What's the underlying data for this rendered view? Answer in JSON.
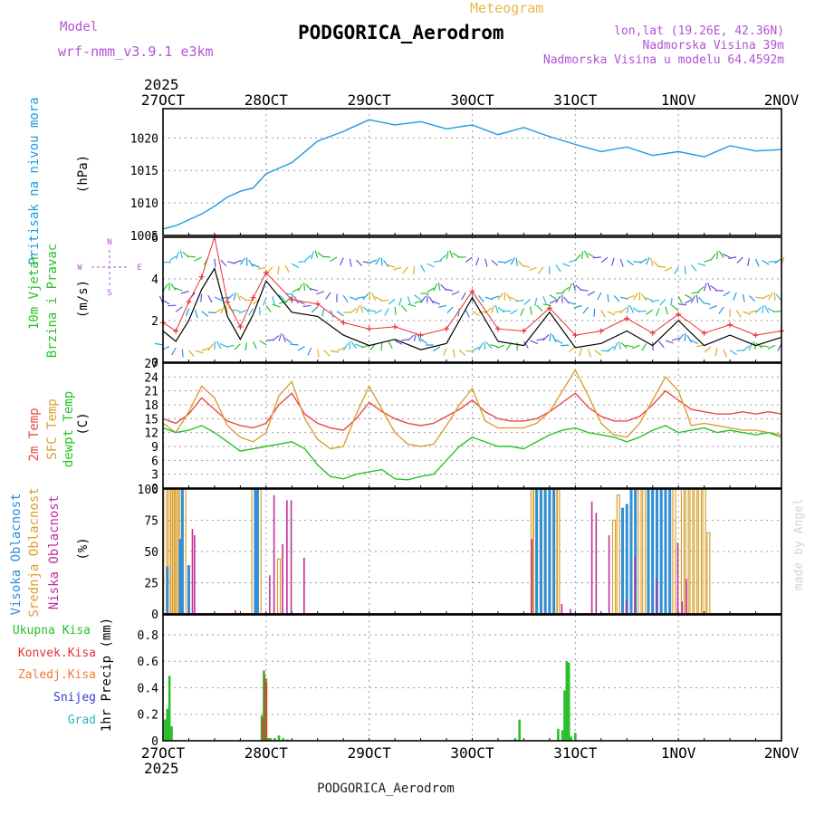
{
  "header": {
    "model_label": "Model",
    "model_name": "wrf-nmm_v3.9.1  e3km",
    "meteogram_label": "Meteogram",
    "station_title": "PODGORICA_Aerodrom",
    "lonlat": "lon,lat (19.26E, 42.36N)",
    "elevation": "Nadmorska Visina 39m",
    "model_elevation": "Nadmorska Visina u modelu 64.4592m",
    "year_top": "2025",
    "year_bottom": "2025",
    "footer_title": "PODGORICA_Aerodrom",
    "credit": "made by Angel"
  },
  "colors": {
    "pressure": "#1e9ae0",
    "wind_speed": "#000000",
    "gust": "#e83030",
    "temp2m": "#e84a4a",
    "sfc_temp": "#d9a032",
    "dewpoint": "#27c227",
    "cloud_high": "#2f8fd8",
    "cloud_mid": "#d9a032",
    "cloud_low": "#c0309a",
    "precip_total": "#2bbf2b",
    "precip_convective": "#e83030",
    "title_purple": "#b352d6",
    "meteogram_orange": "#e6b84a",
    "credit": "#cfd8cf",
    "grid": "#9a9a9a"
  },
  "chart_data": [
    {
      "type": "line",
      "panel": "pressure",
      "ylabel_lines": [
        "Pritisak na nivou mora",
        "(hPa)"
      ],
      "ylim": [
        1005,
        1024.5
      ],
      "yticks": [
        1005,
        1010,
        1015,
        1020
      ],
      "x_hours": [
        0,
        3,
        6,
        9,
        12,
        15,
        18,
        21,
        24,
        30,
        36,
        42,
        48,
        54,
        60,
        66,
        72,
        78,
        84,
        90,
        96,
        102,
        108,
        114,
        120,
        126,
        132,
        138,
        144
      ],
      "series": [
        {
          "name": "Pritisak na nivou mora",
          "values": [
            1006.0,
            1006.5,
            1007.4,
            1008.3,
            1009.5,
            1010.9,
            1011.8,
            1012.3,
            1014.5,
            1016.2,
            1019.5,
            1021.0,
            1022.8,
            1022.0,
            1022.5,
            1021.4,
            1022.0,
            1020.5,
            1021.6,
            1020.2,
            1019.0,
            1017.9,
            1018.6,
            1017.3,
            1017.9,
            1017.1,
            1018.8,
            1018.0,
            1018.2
          ]
        }
      ]
    },
    {
      "type": "line",
      "panel": "wind",
      "ylabel_lines": [
        "10m Vjetar",
        "Brzina i Pravac",
        "(m/s)"
      ],
      "compass": [
        "N",
        "E",
        "S",
        "W"
      ],
      "ylim": [
        0,
        6
      ],
      "yticks": [
        0,
        2,
        4,
        6
      ],
      "x_hours": [
        0,
        3,
        6,
        9,
        12,
        15,
        18,
        21,
        24,
        30,
        36,
        42,
        48,
        54,
        60,
        66,
        72,
        78,
        84,
        90,
        96,
        102,
        108,
        114,
        120,
        126,
        132,
        138,
        144
      ],
      "series": [
        {
          "name": "Brzina vjetra",
          "values": [
            1.5,
            1.0,
            2.0,
            3.5,
            4.5,
            2.2,
            1.1,
            2.3,
            3.9,
            2.4,
            2.2,
            1.3,
            0.8,
            1.1,
            0.6,
            0.9,
            3.1,
            1.0,
            0.8,
            2.4,
            0.7,
            0.9,
            1.5,
            0.8,
            2.0,
            0.8,
            1.3,
            0.8,
            1.2
          ]
        },
        {
          "name": "Udari vjetra",
          "values": [
            1.9,
            1.5,
            2.9,
            4.1,
            6.0,
            2.9,
            1.7,
            3.1,
            4.3,
            3.0,
            2.8,
            1.9,
            1.6,
            1.7,
            1.3,
            1.6,
            3.4,
            1.6,
            1.5,
            2.6,
            1.3,
            1.5,
            2.1,
            1.4,
            2.3,
            1.4,
            1.8,
            1.3,
            1.5
          ]
        }
      ]
    },
    {
      "type": "line",
      "panel": "temperature",
      "ylabel_lines": [
        "2m Temp",
        "SFC Temp",
        "dewpt Temp",
        "(C)"
      ],
      "ylim": [
        0,
        27
      ],
      "yticks": [
        0,
        3,
        6,
        9,
        12,
        15,
        18,
        21,
        24,
        27
      ],
      "x_hours": [
        0,
        3,
        6,
        9,
        12,
        15,
        18,
        21,
        24,
        27,
        30,
        33,
        36,
        39,
        42,
        45,
        48,
        51,
        54,
        57,
        60,
        63,
        66,
        69,
        72,
        75,
        78,
        81,
        84,
        87,
        90,
        93,
        96,
        99,
        102,
        105,
        108,
        111,
        114,
        117,
        120,
        123,
        126,
        129,
        132,
        135,
        138,
        141,
        144
      ],
      "series": [
        {
          "name": "2m Temp",
          "values": [
            15.0,
            14.0,
            16.0,
            19.5,
            17.0,
            14.5,
            13.5,
            13.0,
            14.0,
            18.0,
            20.5,
            16.0,
            14.0,
            13.0,
            12.5,
            15.0,
            18.5,
            16.5,
            15.0,
            14.0,
            13.5,
            14.0,
            15.5,
            17.0,
            19.0,
            16.5,
            15.0,
            14.5,
            14.5,
            15.0,
            16.5,
            18.5,
            20.5,
            17.5,
            15.5,
            14.5,
            14.5,
            15.5,
            18.0,
            21.0,
            19.0,
            17.0,
            16.5,
            16.0,
            16.0,
            16.5,
            16.0,
            16.5,
            16.0
          ]
        },
        {
          "name": "SFC Temp",
          "values": [
            14.0,
            12.0,
            16.5,
            22.0,
            19.5,
            13.5,
            11.0,
            10.0,
            12.0,
            20.0,
            23.0,
            15.0,
            10.5,
            8.5,
            9.0,
            16.0,
            22.0,
            17.0,
            12.0,
            9.5,
            9.0,
            9.5,
            13.5,
            18.0,
            21.5,
            14.5,
            13.0,
            13.0,
            13.0,
            14.0,
            16.5,
            21.0,
            25.5,
            20.0,
            14.0,
            11.5,
            11.0,
            14.0,
            19.0,
            24.0,
            21.0,
            13.5,
            14.0,
            13.5,
            13.0,
            12.5,
            12.5,
            12.0,
            11.5
          ]
        },
        {
          "name": "Dewpoint",
          "values": [
            13.0,
            12.0,
            12.5,
            13.5,
            12.0,
            10.0,
            8.0,
            8.5,
            9.0,
            9.5,
            10.0,
            8.5,
            5.0,
            2.5,
            2.0,
            3.0,
            3.5,
            4.0,
            2.0,
            1.8,
            2.5,
            3.0,
            6.0,
            9.0,
            11.0,
            10.0,
            9.0,
            9.0,
            8.5,
            10.0,
            11.5,
            12.5,
            13.0,
            12.0,
            11.5,
            11.0,
            10.0,
            11.0,
            12.5,
            13.5,
            12.0,
            12.5,
            13.0,
            12.0,
            12.5,
            12.0,
            11.5,
            12.0,
            11.0
          ]
        }
      ]
    },
    {
      "type": "bar",
      "panel": "cloud_cover",
      "ylabel_lines": [
        "Visoka Oblacnost",
        "Srednja Oblacnost",
        "Niska Oblacnost",
        "(%)"
      ],
      "ylim": [
        0,
        100
      ],
      "yticks": [
        0,
        25,
        50,
        75,
        100
      ],
      "series": [
        {
          "name": "Visoka Oblacnost",
          "x": [
            1,
            4,
            4.5,
            6,
            21.5,
            22,
            87,
            88,
            89,
            90,
            91,
            107,
            108,
            109,
            110,
            113,
            114,
            115,
            116,
            117,
            118
          ],
          "values": [
            38,
            60,
            100,
            39,
            100,
            100,
            100,
            100,
            100,
            100,
            100,
            85,
            88,
            100,
            100,
            100,
            100,
            100,
            100,
            100,
            100
          ]
        },
        {
          "name": "Srednja Oblacnost",
          "x": [
            0.5,
            1.5,
            2,
            2.5,
            3,
            3.5,
            4,
            5,
            21,
            22.5,
            27,
            86,
            86.5,
            87.5,
            88.5,
            89.5,
            90.5,
            91.5,
            92,
            105,
            106,
            109.5,
            111,
            112,
            113.5,
            115.5,
            117.5,
            119,
            121,
            122,
            123,
            124,
            125,
            126,
            127
          ],
          "values": [
            100,
            100,
            100,
            100,
            100,
            100,
            100,
            100,
            100,
            100,
            44,
            100,
            100,
            100,
            100,
            100,
            100,
            100,
            100,
            75,
            95,
            100,
            100,
            100,
            100,
            100,
            100,
            100,
            100,
            100,
            100,
            100,
            100,
            100,
            65
          ]
        },
        {
          "name": "Niska Oblacnost",
          "x": [
            7,
            7.5,
            17,
            25,
            26,
            28,
            29,
            30,
            33,
            86,
            93,
            95,
            100,
            101,
            104,
            108,
            110,
            115,
            120,
            121,
            122
          ],
          "values": [
            68,
            63,
            3,
            31,
            95,
            56,
            91,
            91,
            45,
            60,
            8,
            4,
            90,
            81,
            63,
            11,
            46,
            28,
            57,
            10,
            28
          ]
        }
      ]
    },
    {
      "type": "bar",
      "panel": "precipitation",
      "ylabel_lines": [
        "1hr Precip (mm)"
      ],
      "legend": [
        "Ukupna Kisa",
        "Konvek.Kisa",
        "Zaledj.Kisa",
        "Snijeg",
        "Grad"
      ],
      "ylim": [
        0,
        0.95
      ],
      "yticks": [
        0,
        0.2,
        0.4,
        0.6,
        0.8
      ],
      "series": [
        {
          "name": "Ukupna Kisa",
          "x": [
            0.5,
            1,
            1.5,
            2,
            23,
            23.5,
            24,
            24.5,
            25,
            26,
            27,
            28,
            29,
            82,
            83,
            92,
            93,
            93.5,
            94,
            94.5,
            95,
            96
          ],
          "values": [
            0.16,
            0.24,
            0.49,
            0.11,
            0.19,
            0.53,
            0.47,
            0.02,
            0.02,
            0.02,
            0.04,
            0.02,
            0.01,
            0.02,
            0.16,
            0.09,
            0.08,
            0.38,
            0.6,
            0.59,
            0.03,
            0.06
          ]
        },
        {
          "name": "Konvek.Kisa",
          "x": [
            23,
            23.5,
            24
          ],
          "values": [
            0.17,
            0.5,
            0.44
          ]
        }
      ]
    }
  ],
  "x_axis": {
    "start": "27OCT 2025 00UTC",
    "hours_total": 144,
    "tick_labels": [
      "27OCT",
      "28OCT",
      "29OCT",
      "30OCT",
      "31OCT",
      "1NOV",
      "2NOV"
    ],
    "tick_hours": [
      0,
      24,
      48,
      72,
      96,
      120,
      144
    ]
  },
  "legend_labels": {
    "ukupna": "Ukupna Kisa",
    "konvek": "Konvek.Kisa",
    "zaledj": "Zaledj.Kisa",
    "snijeg": "Snijeg",
    "grad": "Grad"
  }
}
